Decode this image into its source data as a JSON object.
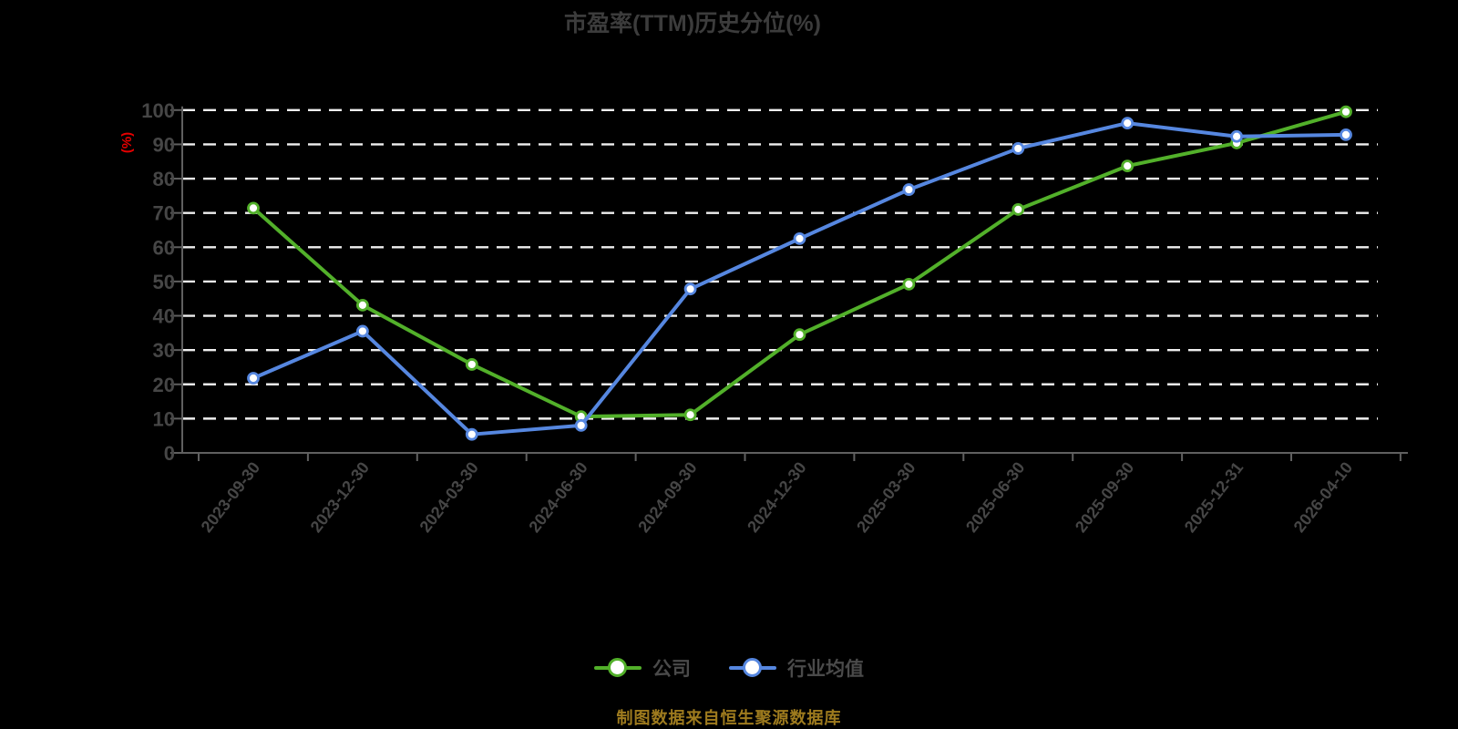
{
  "title": "市盈率(TTM)历史分位(%)",
  "source_note": "制图数据来自恒生聚源数据库",
  "chart_data": {
    "type": "line",
    "title": "市盈率(TTM)历史分位(%)",
    "xlabel": "",
    "ylabel": "(%)",
    "ylabel_color": "#e60000",
    "ylim": [
      0,
      100
    ],
    "y_ticks": [
      0,
      10,
      20,
      30,
      40,
      50,
      60,
      70,
      80,
      90,
      100
    ],
    "grid": "horizontal dashed white lines on black background",
    "legend_position": "bottom",
    "x_tick_label_rotation": -52,
    "categories": [
      "2023-09-30",
      "2023-12-30",
      "2024-03-30",
      "2024-06-30",
      "2024-09-30",
      "2024-12-30",
      "2025-03-30",
      "2025-06-30",
      "2025-09-30",
      "2025-12-31",
      "2026-04-10"
    ],
    "series": [
      {
        "name": "公司",
        "color": "#52b02a",
        "marker": "circle-white-fill",
        "values": [
          71.4,
          43.1,
          25.8,
          10.6,
          11.1,
          34.5,
          49.2,
          71.0,
          83.7,
          90.4,
          99.5
        ]
      },
      {
        "name": "行业均值",
        "color": "#5687e0",
        "marker": "circle-white-fill",
        "values": [
          21.8,
          35.5,
          5.4,
          8.0,
          47.8,
          62.5,
          76.8,
          88.8,
          96.2,
          92.3,
          92.8
        ]
      }
    ]
  },
  "colors": {
    "background": "#000000",
    "title_text": "#3c3c3c",
    "axis_line": "#606060",
    "tick_label": "#464646",
    "gridline": "#efefef",
    "legend_text": "#4a4a4a",
    "source_note_text": "#9e7b1e",
    "marker_fill": "#ffffff"
  }
}
